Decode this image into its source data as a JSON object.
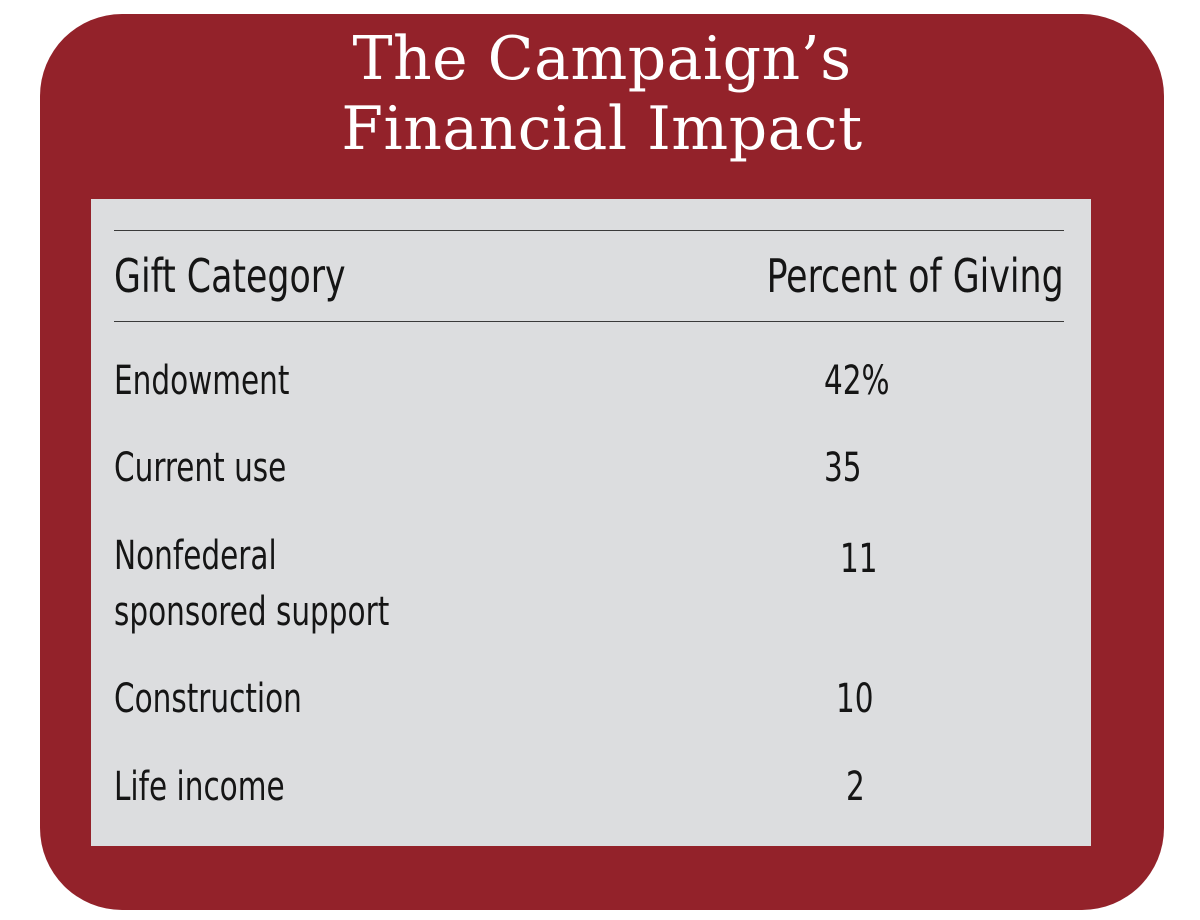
{
  "chart_data": {
    "type": "table",
    "title_lines": [
      "The Campaign’s",
      "Financial Impact"
    ],
    "columns": [
      "Gift Category",
      "Percent of Giving"
    ],
    "rows": [
      {
        "category_lines": [
          "Endowment"
        ],
        "value": "42%"
      },
      {
        "category_lines": [
          "Current use"
        ],
        "value": "35"
      },
      {
        "category_lines": [
          "Nonfederal",
          "sponsored support"
        ],
        "value": "11"
      },
      {
        "category_lines": [
          "Construction"
        ],
        "value": "10"
      },
      {
        "category_lines": [
          "Life income"
        ],
        "value": "2"
      }
    ]
  },
  "colors": {
    "frame": "#93222a",
    "panel": "#dcdddf",
    "title_text": "#ffffff",
    "body_text": "#151515",
    "rule": "#3a3a3a"
  }
}
